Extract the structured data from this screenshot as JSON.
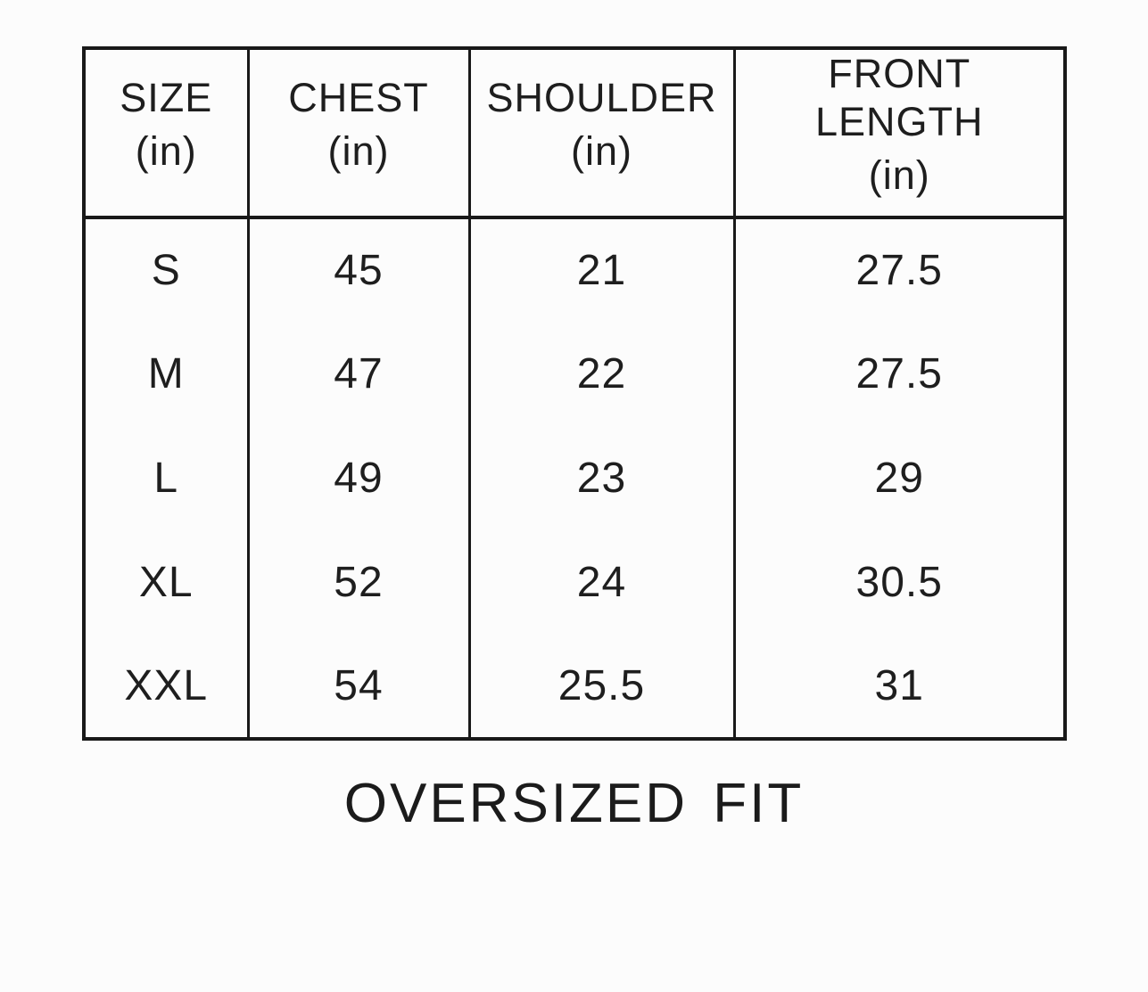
{
  "page": {
    "background_color": "#fcfcfc",
    "text_color": "#1e1e1e",
    "border_color": "#191919"
  },
  "chart_data": {
    "type": "table",
    "columns": [
      {
        "label": "SIZE",
        "unit": "(in)"
      },
      {
        "label": "CHEST",
        "unit": "(in)"
      },
      {
        "label": "SHOULDER",
        "unit": "(in)"
      },
      {
        "label": "FRONT LENGTH",
        "unit": "(in)"
      }
    ],
    "rows": [
      [
        "S",
        "45",
        "21",
        "27.5"
      ],
      [
        "M",
        "47",
        "22",
        "27.5"
      ],
      [
        "L",
        "49",
        "23",
        "29"
      ],
      [
        "XL",
        "52",
        "24",
        "30.5"
      ],
      [
        "XXL",
        "54",
        "25.5",
        "31"
      ]
    ],
    "caption": "OVERSIZED FIT",
    "layout": {
      "grid": "vertical-lines-only",
      "header_separator": true
    }
  }
}
